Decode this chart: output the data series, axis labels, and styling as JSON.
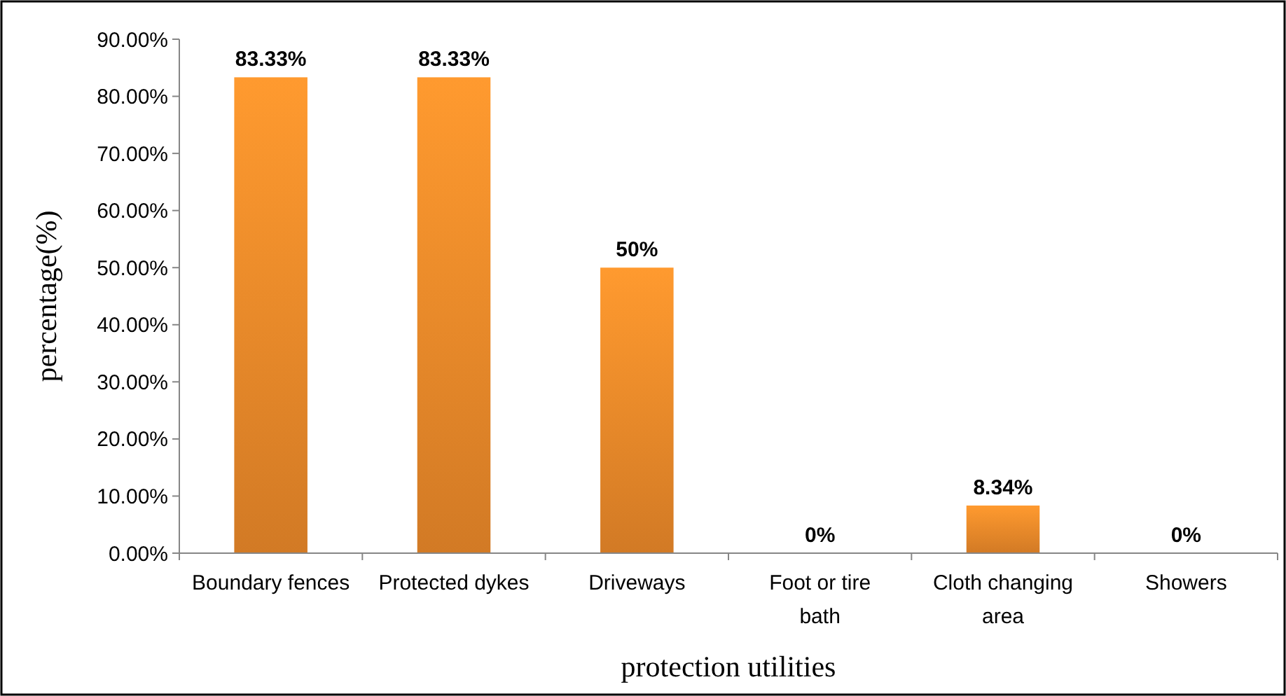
{
  "chart_data": {
    "type": "bar",
    "xlabel": "protection utilities",
    "ylabel": "percentage(%)",
    "categories": [
      "Boundary fences",
      "Protected dykes",
      "Driveways",
      "Foot or tire bath",
      "Cloth changing area",
      "Showers"
    ],
    "values": [
      83.33,
      83.33,
      50,
      0,
      8.34,
      0
    ],
    "value_labels": [
      "83.33%",
      "83.33%",
      "50%",
      "0%",
      "8.34%",
      "0%"
    ],
    "color": "#ee8a2a",
    "ylim": [
      0,
      90
    ],
    "yticks": [
      {
        "value": 0,
        "label": "0.00%"
      },
      {
        "value": 10,
        "label": "10.00%"
      },
      {
        "value": 20,
        "label": "20.00%"
      },
      {
        "value": 30,
        "label": "30.00%"
      },
      {
        "value": 40,
        "label": "40.00%"
      },
      {
        "value": 50,
        "label": "50.00%"
      },
      {
        "value": 60,
        "label": "60.00%"
      },
      {
        "value": 70,
        "label": "70.00%"
      },
      {
        "value": 80,
        "label": "80.00%"
      },
      {
        "value": 90,
        "label": "90.00%"
      }
    ],
    "grid": false
  }
}
